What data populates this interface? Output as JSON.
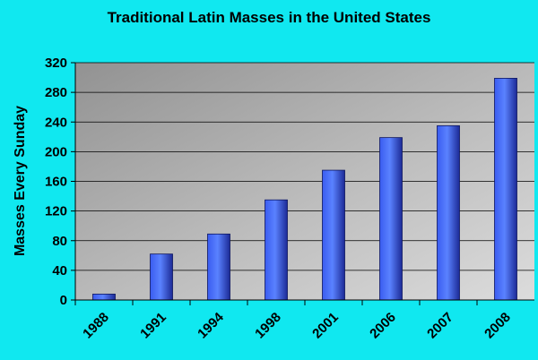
{
  "chart_data": {
    "type": "bar",
    "title": "Traditional Latin Masses in the United States",
    "xlabel": "",
    "ylabel": "Masses Every Sunday",
    "categories": [
      "1988",
      "1991",
      "1994",
      "1998",
      "2001",
      "2006",
      "2007",
      "2008"
    ],
    "values": [
      8,
      62,
      89,
      135,
      175,
      219,
      235,
      299
    ],
    "ylim": [
      0,
      320
    ],
    "yticks": [
      0,
      40,
      80,
      120,
      160,
      200,
      240,
      280,
      320
    ],
    "grid": true,
    "legend": "none"
  },
  "colors": {
    "page_background": "#10e8f0",
    "plot_background_dark": "#9a9a9a",
    "plot_background_light": "#d8d8d8",
    "bar_light": "#4f78ff",
    "bar_dark": "#1e2c9a"
  }
}
